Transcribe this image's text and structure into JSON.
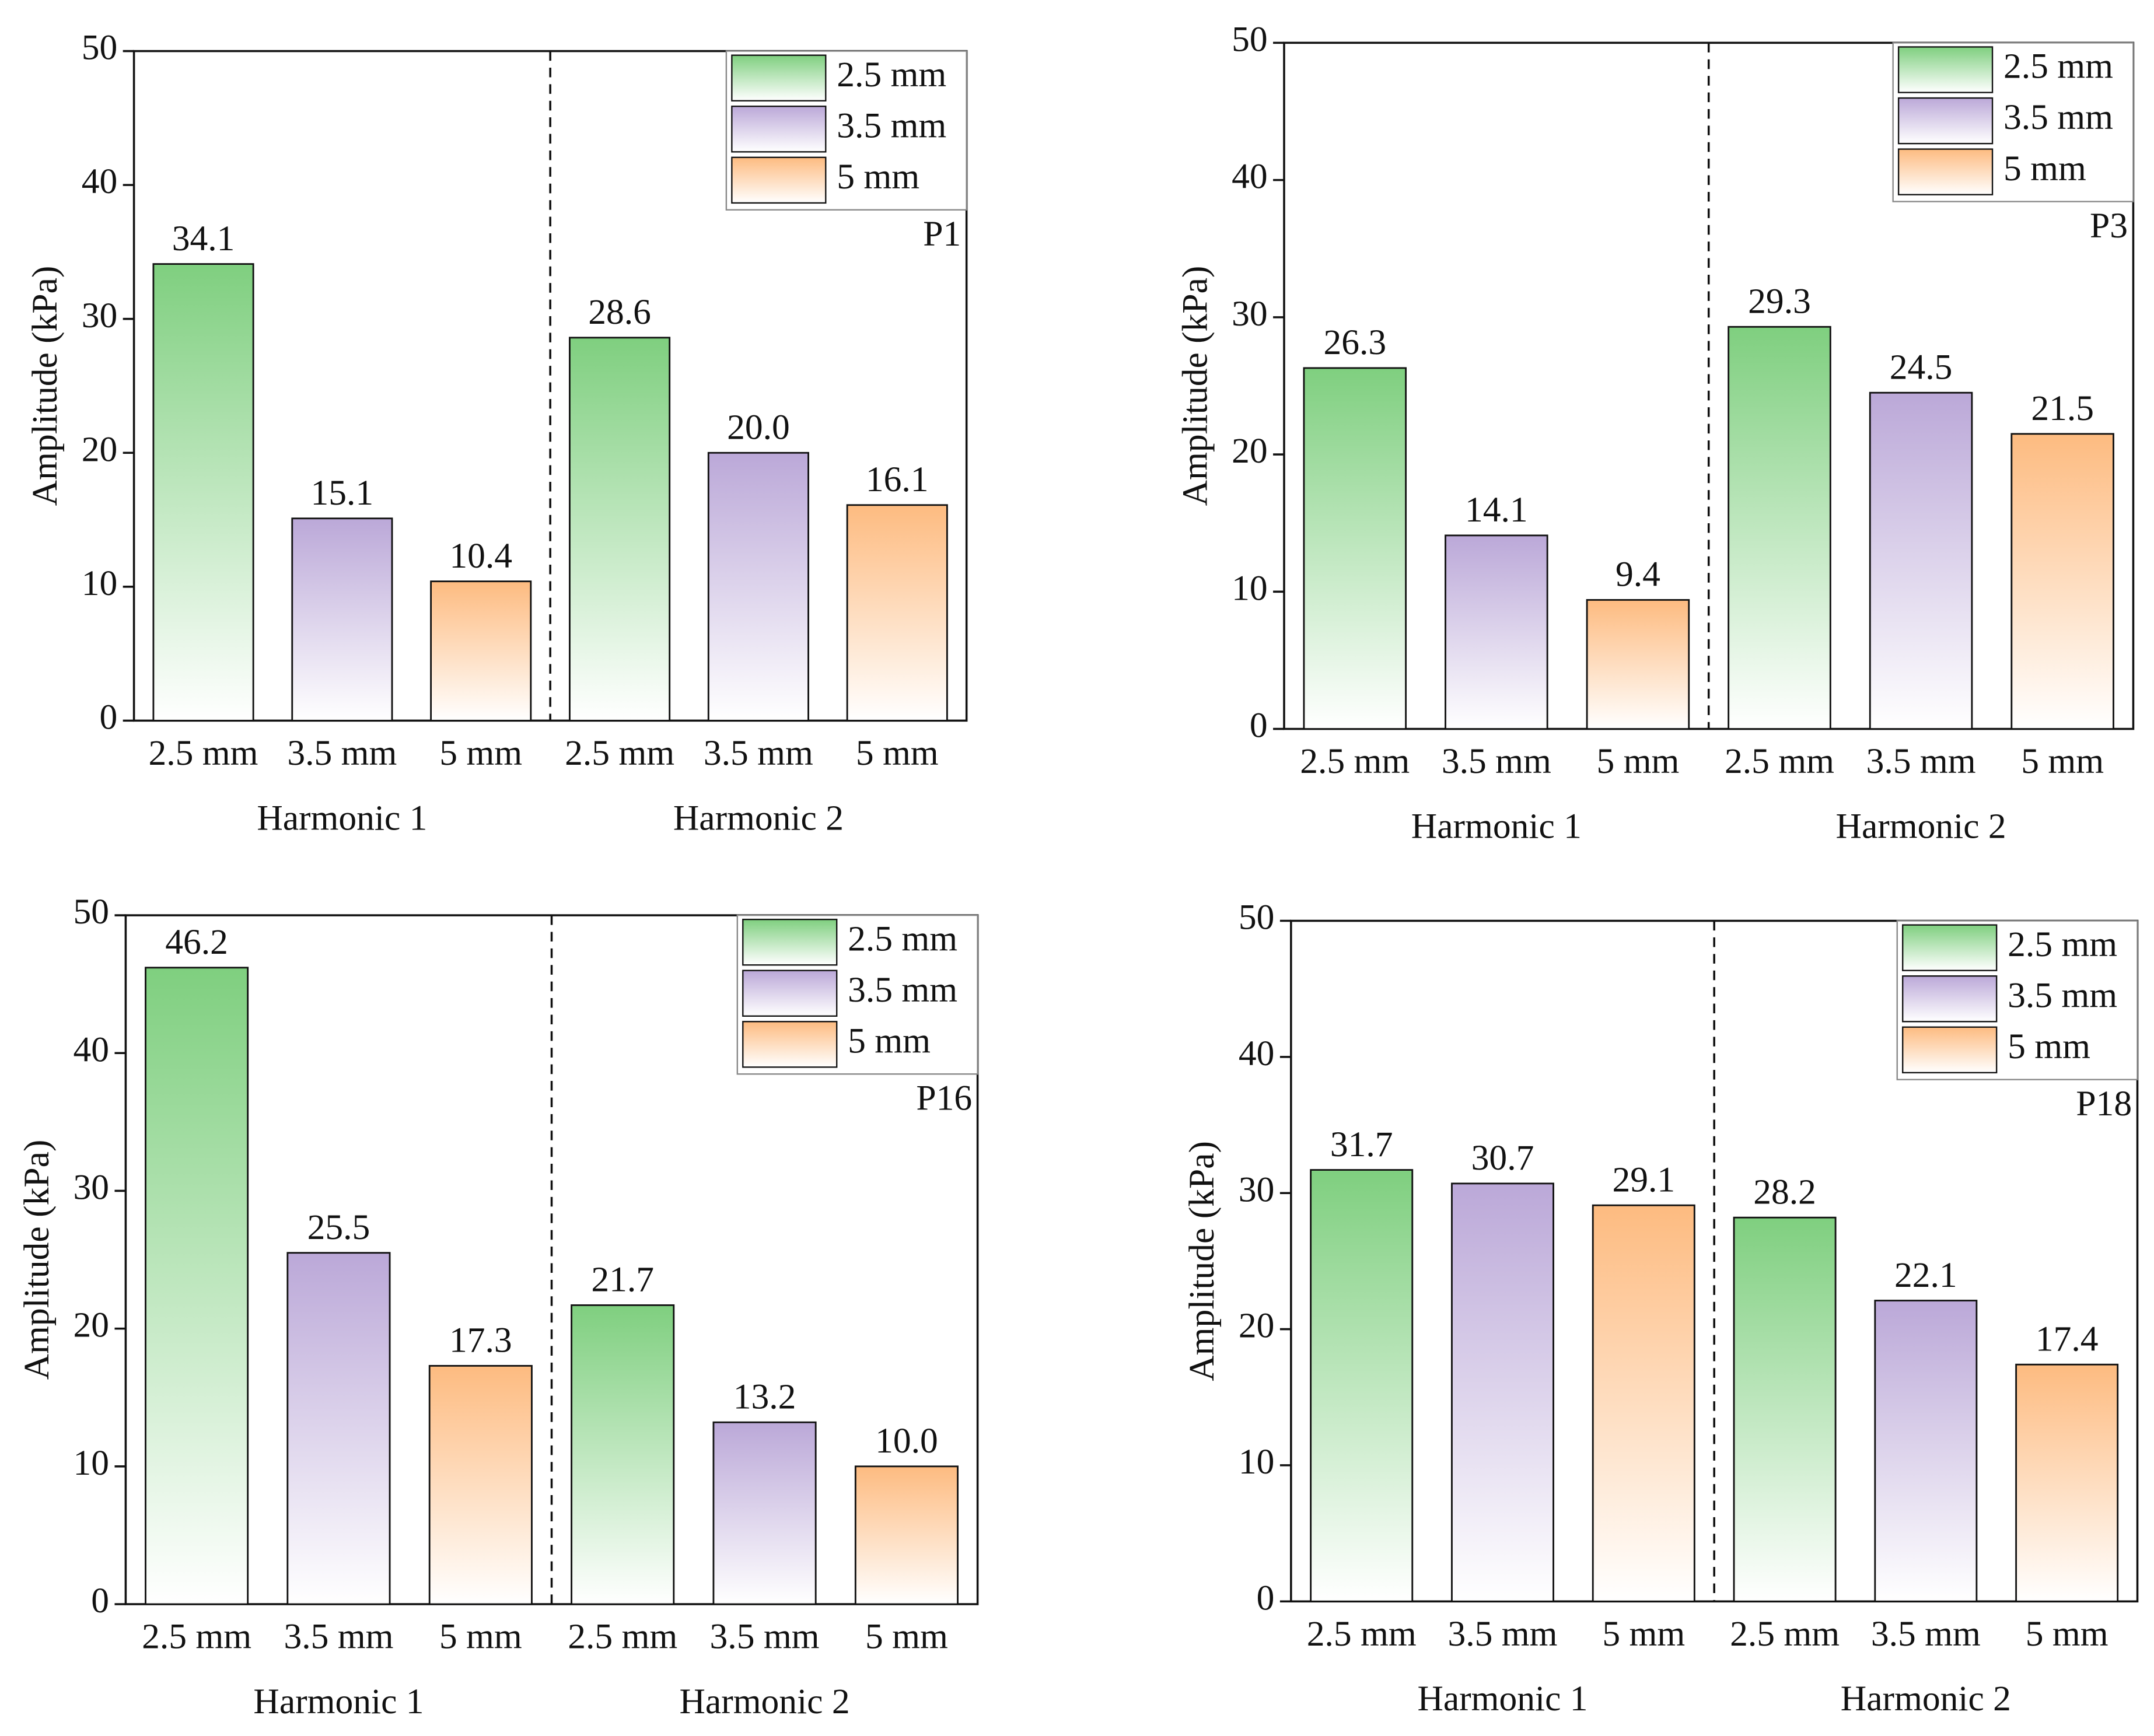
{
  "chart_data": [
    {
      "type": "bar",
      "annotation": "P1",
      "ylabel": "Amplitude (kPa)",
      "categories": [
        "Harmonic 1",
        "Harmonic 2"
      ],
      "ylim": [
        0,
        50
      ],
      "yticks": [
        0,
        10,
        20,
        30,
        40,
        50
      ],
      "series": [
        {
          "name": "2.5 mm",
          "color": "#7fcf7f",
          "values": [
            34.1,
            28.6
          ],
          "value_labels": [
            "34.1",
            "28.6"
          ]
        },
        {
          "name": "3.5 mm",
          "color": "#bba8d8",
          "values": [
            15.1,
            20.0
          ],
          "value_labels": [
            "15.1",
            "20.0"
          ]
        },
        {
          "name": "5 mm",
          "color": "#fdbb80",
          "values": [
            10.4,
            16.1
          ],
          "value_labels": [
            "10.4",
            "16.1"
          ]
        }
      ]
    },
    {
      "type": "bar",
      "annotation": "P3",
      "ylabel": "Amplitude (kPa)",
      "categories": [
        "Harmonic 1",
        "Harmonic 2"
      ],
      "ylim": [
        0,
        50
      ],
      "yticks": [
        0,
        10,
        20,
        30,
        40,
        50
      ],
      "series": [
        {
          "name": "2.5 mm",
          "color": "#7fcf7f",
          "values": [
            26.3,
            29.3
          ],
          "value_labels": [
            "26.3",
            "29.3"
          ]
        },
        {
          "name": "3.5 mm",
          "color": "#bba8d8",
          "values": [
            14.1,
            24.5
          ],
          "value_labels": [
            "14.1",
            "24.5"
          ]
        },
        {
          "name": "5 mm",
          "color": "#fdbb80",
          "values": [
            9.4,
            21.5
          ],
          "value_labels": [
            "9.4",
            "21.5"
          ]
        }
      ]
    },
    {
      "type": "bar",
      "annotation": "P16",
      "ylabel": "Amplitude (kPa)",
      "categories": [
        "Harmonic 1",
        "Harmonic 2"
      ],
      "ylim": [
        0,
        50
      ],
      "yticks": [
        0,
        10,
        20,
        30,
        40,
        50
      ],
      "series": [
        {
          "name": "2.5 mm",
          "color": "#7fcf7f",
          "values": [
            46.2,
            21.7
          ],
          "value_labels": [
            "46.2",
            "21.7"
          ]
        },
        {
          "name": "3.5 mm",
          "color": "#bba8d8",
          "values": [
            25.5,
            13.2
          ],
          "value_labels": [
            "25.5",
            "13.2"
          ]
        },
        {
          "name": "5 mm",
          "color": "#fdbb80",
          "values": [
            17.3,
            10.0
          ],
          "value_labels": [
            "17.3",
            "10.0"
          ]
        }
      ]
    },
    {
      "type": "bar",
      "annotation": "P18",
      "ylabel": "Amplitude (kPa)",
      "categories": [
        "Harmonic 1",
        "Harmonic 2"
      ],
      "ylim": [
        0,
        50
      ],
      "yticks": [
        0,
        10,
        20,
        30,
        40,
        50
      ],
      "series": [
        {
          "name": "2.5 mm",
          "color": "#7fcf7f",
          "values": [
            31.7,
            28.2
          ],
          "value_labels": [
            "31.7",
            "28.2"
          ]
        },
        {
          "name": "3.5 mm",
          "color": "#bba8d8",
          "values": [
            30.7,
            22.1
          ],
          "value_labels": [
            "30.7",
            "22.1"
          ]
        },
        {
          "name": "5 mm",
          "color": "#fdbb80",
          "values": [
            29.1,
            17.4
          ],
          "value_labels": [
            "29.1",
            "17.4"
          ]
        }
      ]
    }
  ]
}
